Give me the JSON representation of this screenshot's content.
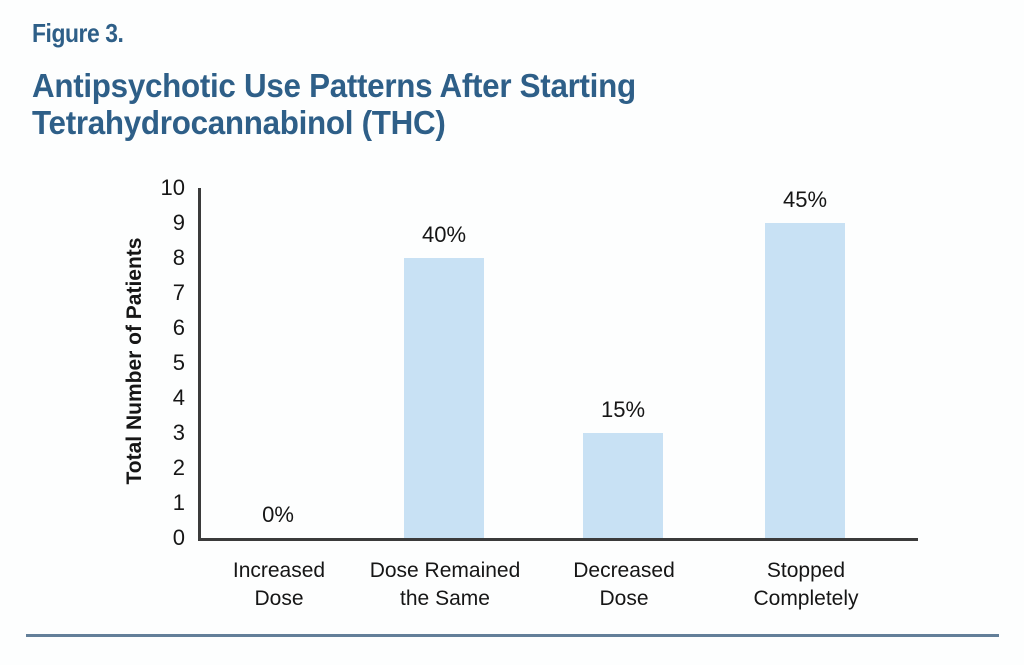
{
  "figure": {
    "label": "Figure 3.",
    "title_line1": "Antipsychotic Use Patterns After Starting",
    "title_line2": "Tetrahydrocannabinol (THC)"
  },
  "chart_data": {
    "type": "bar",
    "figure_label": "Figure 3.",
    "title": "Antipsychotic Use Patterns After Starting Tetrahydrocannabinol (THC)",
    "categories": [
      "Increased\nDose",
      "Dose Remained\nthe Same",
      "Decreased\nDose",
      "Stopped\nCompletely"
    ],
    "values": [
      0,
      8,
      3,
      9
    ],
    "value_labels": [
      "0%",
      "40%",
      "15%",
      "45%"
    ],
    "xlabel": "",
    "ylabel": "Total Number of Patients",
    "ylim": [
      0,
      10
    ],
    "yticks": [
      0,
      1,
      2,
      3,
      4,
      5,
      6,
      7,
      8,
      9,
      10
    ],
    "grid": false,
    "legend_position": "none",
    "bar_color": "#C8E1F4",
    "title_color": "#2E5F88",
    "axis_color": "#3B3B3B",
    "text_color": "#161616"
  },
  "divider_color": "#637F99"
}
